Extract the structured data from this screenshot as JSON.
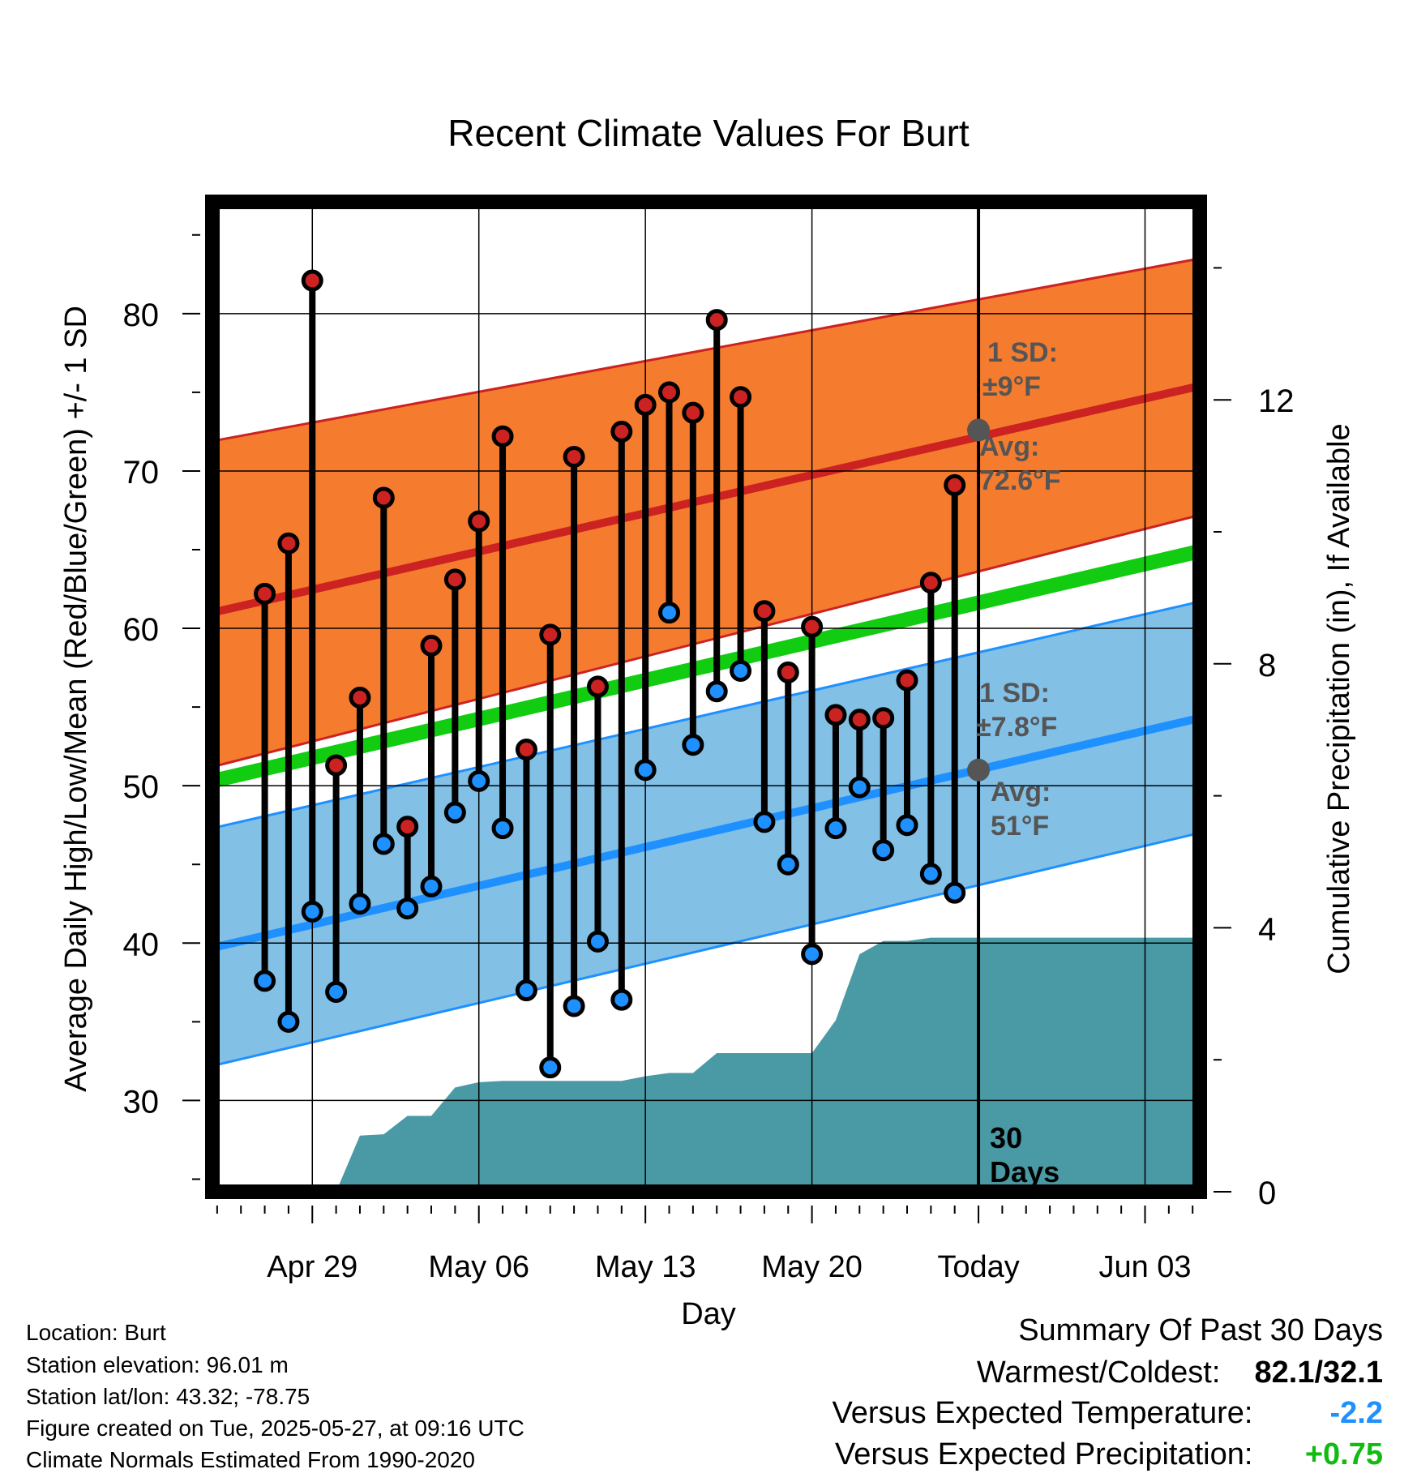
{
  "chart_data": {
    "type": "line",
    "title": "Recent Climate Values For Burt",
    "xlabel": "Day",
    "ylabel": "Average Daily High/Low/Mean (Red/Blue/Green) +/- 1 SD",
    "y2label": "Cumulative Precipitation (in), If Available",
    "x_tick_labels": [
      "Apr 29",
      "May 06",
      "May 13",
      "May 20",
      "Today",
      "Jun 03"
    ],
    "x_day_range": [
      -32.2,
      9.3
    ],
    "x_ticks_day": [
      -28,
      -21,
      -14,
      -7,
      0,
      7
    ],
    "ylim": [
      24.2,
      87.1
    ],
    "yticks": [
      30,
      40,
      50,
      60,
      70,
      80
    ],
    "y2lim": [
      0,
      15
    ],
    "y2ticks": [
      0,
      4,
      8,
      12
    ],
    "grid": true,
    "today_label": "Today",
    "days_annotation": [
      "30",
      "Days"
    ],
    "normals": {
      "high_avg": [
        61.0,
        75.4
      ],
      "high_sd_lower": [
        51.2,
        67.2
      ],
      "high_sd_upper": [
        71.9,
        83.5
      ],
      "mean_avg": [
        50.3,
        64.9
      ],
      "low_avg": [
        39.7,
        54.3
      ],
      "low_sd_lower": [
        32.2,
        47.0
      ],
      "low_sd_upper": [
        47.3,
        61.7
      ]
    },
    "annotations": {
      "high": {
        "sd_label": "1 SD:",
        "sd_value": "±9°F",
        "avg_label": "Avg:",
        "avg_value": "72.6°F",
        "avg": 72.6
      },
      "low": {
        "sd_label": "1 SD:",
        "sd_value": "±7.8°F",
        "avg_label": "Avg:",
        "avg_value": "51°F",
        "avg": 51
      }
    },
    "days": [
      -30,
      -29,
      -28,
      -27,
      -26,
      -25,
      -24,
      -23,
      -22,
      -21,
      -20,
      -19,
      -18,
      -17,
      -16,
      -15,
      -14,
      -13,
      -12,
      -11,
      -10,
      -9,
      -8,
      -7,
      -6,
      -5,
      -4,
      -3,
      -2,
      -1
    ],
    "highs": [
      62.2,
      65.4,
      82.1,
      51.3,
      55.6,
      68.3,
      47.4,
      58.9,
      63.1,
      66.8,
      72.2,
      52.3,
      59.6,
      70.9,
      56.3,
      72.5,
      74.2,
      75.0,
      73.7,
      79.6,
      74.7,
      61.1,
      57.2,
      60.1,
      54.5,
      54.2,
      54.3,
      56.7,
      62.9,
      69.1
    ],
    "lows": [
      37.6,
      35.0,
      42.0,
      36.9,
      42.5,
      46.3,
      42.2,
      43.6,
      48.3,
      50.3,
      47.3,
      37.0,
      32.1,
      36.0,
      40.1,
      36.4,
      51.0,
      61.0,
      52.6,
      56.0,
      57.3,
      47.7,
      45.0,
      39.3,
      47.3,
      49.9,
      45.9,
      47.5,
      44.4,
      43.2
    ],
    "precip_cum": {
      "days": [
        -27,
        -26,
        -25,
        -24,
        -23,
        -22,
        -21,
        -20,
        -19,
        -18,
        -17,
        -16,
        -15,
        -14,
        -13,
        -12,
        -11,
        -10,
        -9,
        -8,
        -7,
        -6,
        -5,
        -4,
        -3,
        -2,
        -1,
        0,
        9.3
      ],
      "values": [
        0,
        0.85,
        0.87,
        1.15,
        1.15,
        1.58,
        1.66,
        1.68,
        1.68,
        1.68,
        1.68,
        1.68,
        1.68,
        1.75,
        1.8,
        1.8,
        2.1,
        2.1,
        2.1,
        2.1,
        2.1,
        2.6,
        3.6,
        3.8,
        3.8,
        3.85,
        3.85,
        3.85,
        3.85
      ]
    },
    "colors": {
      "high_band": "#f57c2e",
      "high_line": "#cc2222",
      "low_band": "#82c0e6",
      "low_line": "#1e90ff",
      "mean_line": "#11cc11",
      "precip": "#4a9aa5",
      "high_marker": "#cc2222",
      "low_marker": "#1e90ff",
      "avg_marker": "#555555",
      "annotation_text": "#555555"
    }
  },
  "info": {
    "location": "Location: Burt",
    "elevation": "Station elevation: 96.01 m",
    "latlon": "Station lat/lon: 43.32; -78.75",
    "created": "Figure created on Tue, 2025-05-27, at 09:16 UTC",
    "normals": "Climate Normals Estimated From 1990-2020"
  },
  "summary": {
    "title": "Summary Of Past 30 Days",
    "warmest_label": "Warmest/Coldest:",
    "warmest_value": "82.1/32.1",
    "temp_label": "Versus Expected Temperature:",
    "temp_value": "-2.2",
    "temp_color": "#1e90ff",
    "precip_label": "Versus Expected Precipitation:",
    "precip_value": "+0.75",
    "precip_color": "#11bb11"
  }
}
